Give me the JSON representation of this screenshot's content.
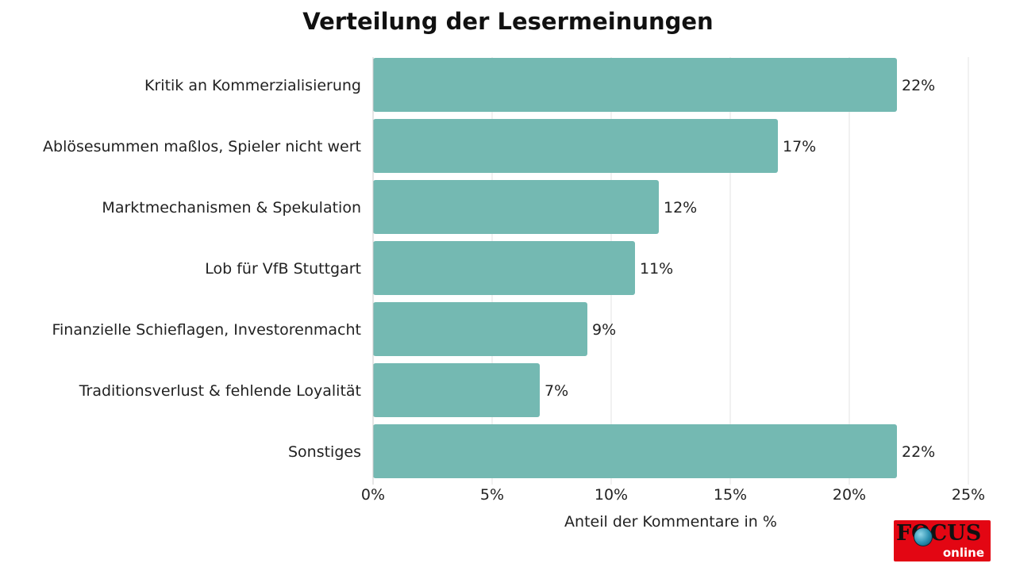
{
  "chart_data": {
    "type": "bar",
    "orientation": "horizontal",
    "title": "Verteilung der Lesermeinungen",
    "xlabel": "Anteil der Kommentare in %",
    "ylabel": "",
    "xlim": [
      0,
      25
    ],
    "xticks": [
      0,
      5,
      10,
      15,
      20,
      25
    ],
    "xtick_labels": [
      "0%",
      "5%",
      "10%",
      "15%",
      "20%",
      "25%"
    ],
    "categories": [
      "Kritik an Kommerzialisierung",
      "Ablösesummen maßlos, Spieler nicht wert",
      "Marktmechanismen & Spekulation",
      "Lob für VfB Stuttgart",
      "Finanzielle Schieflagen, Investorenmacht",
      "Traditionsverlust & fehlende Loyalität",
      "Sonstiges"
    ],
    "values": [
      22,
      17,
      12,
      11,
      9,
      7,
      22
    ],
    "value_labels": [
      "22%",
      "17%",
      "12%",
      "11%",
      "9%",
      "7%",
      "22%"
    ],
    "grid": "vertical",
    "bar_color": "#74b9b2",
    "grid_color": "#e3e3e3",
    "text_color": "#222222"
  },
  "logo": {
    "brand": "FOCUS",
    "sub": "online",
    "color": "#e30613"
  }
}
